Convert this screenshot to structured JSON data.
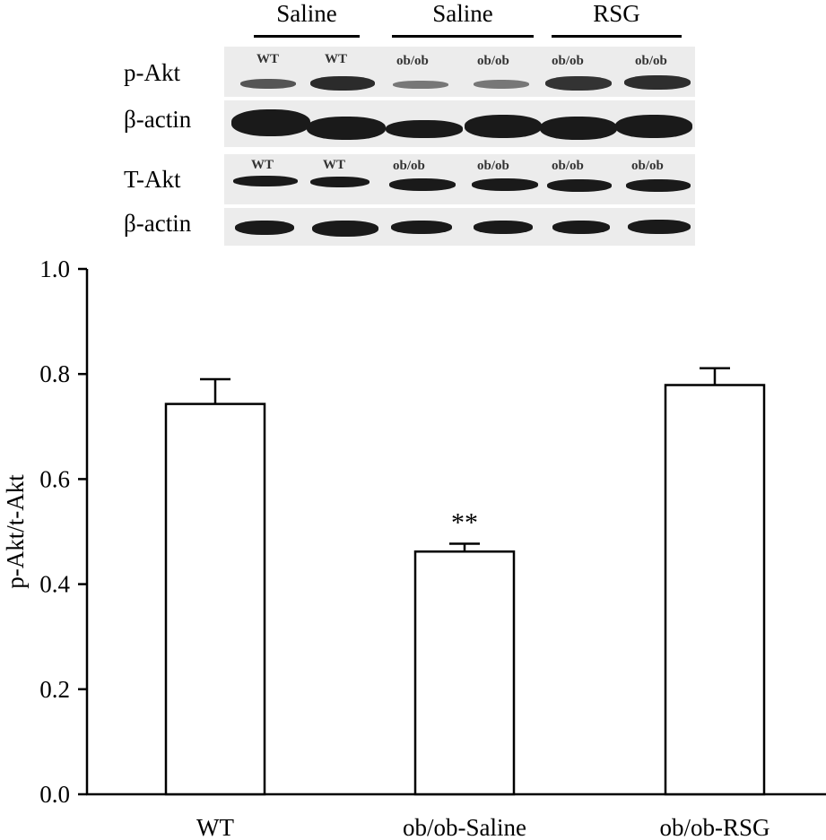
{
  "blot": {
    "group_labels": [
      "Saline",
      "Saline",
      "RSG"
    ],
    "row_labels": [
      "p-Akt",
      "β-actin",
      "T-Akt",
      "β-actin"
    ],
    "lane_labels": [
      "WT",
      "WT",
      "ob/ob",
      "ob/ob",
      "ob/ob",
      "ob/ob"
    ]
  },
  "chart_data": {
    "type": "bar",
    "categories": [
      "WT",
      "ob/ob-Saline",
      "ob/ob-RSG"
    ],
    "values": [
      0.743,
      0.462,
      0.779
    ],
    "errors": [
      0.047,
      0.015,
      0.032
    ],
    "annotations": [
      "",
      "**",
      ""
    ],
    "ylabel": "p-Akt/t-Akt",
    "xlabel": "",
    "ylim": [
      0.0,
      1.0
    ],
    "yticks": [
      "0.0",
      "0.2",
      "0.4",
      "0.6",
      "0.8",
      "1.0"
    ],
    "grid": false,
    "bar_fill": "#ffffff",
    "bar_stroke": "#000000"
  }
}
